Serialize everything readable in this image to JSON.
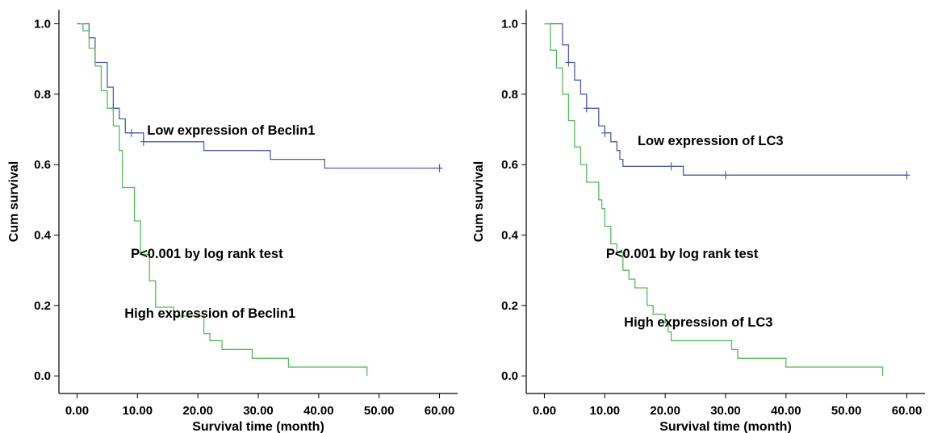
{
  "chart_data": [
    {
      "type": "line",
      "title": "",
      "xlabel": "Survival  time  (month)",
      "ylabel": "Cum survival",
      "xlim": [
        -3,
        63
      ],
      "ylim": [
        -0.05,
        1.04
      ],
      "xticks": [
        0,
        10,
        20,
        30,
        40,
        50,
        60
      ],
      "xtick_labels": [
        "0.00",
        "10.00",
        "20.00",
        "30.00",
        "40.00",
        "50.00",
        "60.00"
      ],
      "yticks": [
        0,
        0.2,
        0.4,
        0.6,
        0.8,
        1.0
      ],
      "ytick_labels": [
        "0.0",
        "0.2",
        "0.4",
        "0.6",
        "0.8",
        "1.0"
      ],
      "grid": false,
      "annotations": [
        {
          "text": "Low expression of Beclin1",
          "x": 25.5,
          "y": 0.685
        },
        {
          "text": "P<0.001 by log rank test",
          "x": 21.5,
          "y": 0.335
        },
        {
          "text": "High expression of Beclin1",
          "x": 22,
          "y": 0.165
        }
      ],
      "series": [
        {
          "color": "#4f5ea8",
          "steps": [
            [
              0,
              1.0
            ],
            [
              2,
              0.96
            ],
            [
              3,
              0.89
            ],
            [
              5,
              0.82
            ],
            [
              6,
              0.76
            ],
            [
              7,
              0.73
            ],
            [
              8,
              0.69
            ],
            [
              9,
              0.69
            ],
            [
              11,
              0.665
            ],
            [
              21,
              0.64
            ],
            [
              32,
              0.615
            ],
            [
              41,
              0.59
            ],
            [
              60,
              0.59
            ]
          ],
          "censored": [
            [
              6,
              0.76
            ],
            [
              9,
              0.69
            ],
            [
              11,
              0.665
            ],
            [
              60,
              0.59
            ]
          ]
        },
        {
          "color": "#59b95f",
          "steps": [
            [
              0.5,
              1.0
            ],
            [
              1,
              0.98
            ],
            [
              2,
              0.93
            ],
            [
              3,
              0.88
            ],
            [
              4,
              0.81
            ],
            [
              5,
              0.76
            ],
            [
              6,
              0.71
            ],
            [
              7,
              0.64
            ],
            [
              7.5,
              0.535
            ],
            [
              9.5,
              0.44
            ],
            [
              10.5,
              0.345
            ],
            [
              12,
              0.27
            ],
            [
              13,
              0.195
            ],
            [
              16,
              0.17
            ],
            [
              21,
              0.12
            ],
            [
              22,
              0.1
            ],
            [
              24,
              0.075
            ],
            [
              29,
              0.05
            ],
            [
              35,
              0.025
            ],
            [
              48,
              0.0
            ]
          ],
          "censored": []
        }
      ]
    },
    {
      "type": "line",
      "title": "",
      "xlabel": "Survival  time  (month)",
      "ylabel": "Cum survival",
      "xlim": [
        -3,
        63
      ],
      "ylim": [
        -0.05,
        1.04
      ],
      "xticks": [
        0,
        10,
        20,
        30,
        40,
        50,
        60
      ],
      "xtick_labels": [
        "0.00",
        "10.00",
        "20.00",
        "30.00",
        "40.00",
        "50.00",
        "60.00"
      ],
      "yticks": [
        0,
        0.2,
        0.4,
        0.6,
        0.8,
        1.0
      ],
      "ytick_labels": [
        "0.0",
        "0.2",
        "0.4",
        "0.6",
        "0.8",
        "1.0"
      ],
      "grid": false,
      "annotations": [
        {
          "text": "Low expression of LC3",
          "x": 27.5,
          "y": 0.655
        },
        {
          "text": "P<0.001 by log rank test",
          "x": 22.8,
          "y": 0.335
        },
        {
          "text": "High expression of LC3",
          "x": 25.5,
          "y": 0.14
        }
      ],
      "series": [
        {
          "color": "#4f5ea8",
          "steps": [
            [
              0,
              1.0
            ],
            [
              3,
              0.94
            ],
            [
              4,
              0.89
            ],
            [
              5,
              0.84
            ],
            [
              6,
              0.8
            ],
            [
              7,
              0.76
            ],
            [
              9,
              0.71
            ],
            [
              10,
              0.69
            ],
            [
              11,
              0.665
            ],
            [
              12,
              0.64
            ],
            [
              12.5,
              0.615
            ],
            [
              13,
              0.595
            ],
            [
              21,
              0.595
            ],
            [
              23,
              0.57
            ],
            [
              60,
              0.57
            ]
          ],
          "censored": [
            [
              4,
              0.89
            ],
            [
              7,
              0.76
            ],
            [
              10,
              0.69
            ],
            [
              21,
              0.595
            ],
            [
              30,
              0.57
            ],
            [
              60,
              0.57
            ]
          ]
        },
        {
          "color": "#59b95f",
          "steps": [
            [
              0,
              1.0
            ],
            [
              1,
              0.925
            ],
            [
              2,
              0.875
            ],
            [
              3,
              0.8
            ],
            [
              4,
              0.725
            ],
            [
              5,
              0.65
            ],
            [
              6,
              0.6
            ],
            [
              7,
              0.55
            ],
            [
              9,
              0.5
            ],
            [
              9.5,
              0.475
            ],
            [
              10,
              0.425
            ],
            [
              11,
              0.375
            ],
            [
              12,
              0.35
            ],
            [
              13,
              0.3
            ],
            [
              14,
              0.275
            ],
            [
              15,
              0.25
            ],
            [
              17,
              0.2
            ],
            [
              18,
              0.175
            ],
            [
              20,
              0.15
            ],
            [
              20.5,
              0.125
            ],
            [
              21,
              0.1
            ],
            [
              31,
              0.075
            ],
            [
              32,
              0.05
            ],
            [
              40,
              0.025
            ],
            [
              56,
              0.0
            ]
          ],
          "censored": []
        }
      ]
    }
  ]
}
